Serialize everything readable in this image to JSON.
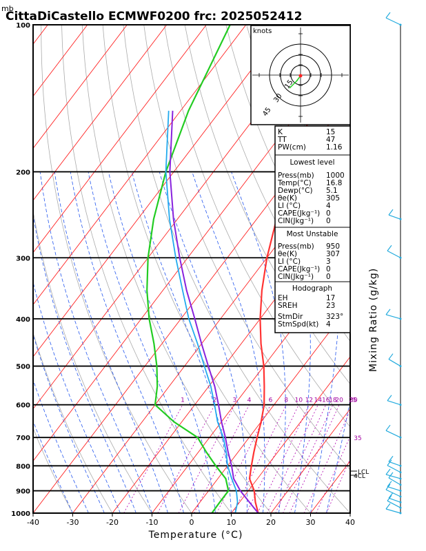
{
  "title": "CittaDiCastello ECMWF0200  frc: 2025052412",
  "unit_mb": "mb",
  "xlabel": "Temperature (°C)",
  "ylabel_right": "Mixing Ratio (g/kg)",
  "hodograph": {
    "unit": "knots",
    "ring_labels": [
      "15",
      "30",
      "45"
    ]
  },
  "indices": [
    {
      "label": "K",
      "value": "15"
    },
    {
      "label": "TT",
      "value": "47"
    },
    {
      "label": "PW(cm)",
      "value": "1.16"
    }
  ],
  "lowest_level": {
    "header": "Lowest level",
    "rows": [
      {
        "label": "Press(mb)",
        "value": "1000"
      },
      {
        "label": "Temp(°C)",
        "value": "16.8"
      },
      {
        "label": "Dewp(°C)",
        "value": "5.1"
      },
      {
        "label": "θe(K)",
        "value": "305"
      },
      {
        "label": "LI (°C)",
        "value": "4"
      },
      {
        "label": "CAPE(Jkg⁻¹)",
        "value": "0"
      },
      {
        "label": "CIN(Jkg⁻¹)",
        "value": "0"
      }
    ]
  },
  "most_unstable": {
    "header": "Most Unstable",
    "rows": [
      {
        "label": "Press(mb)",
        "value": "950"
      },
      {
        "label": "θe(K)",
        "value": "307"
      },
      {
        "label": "LI (°C)",
        "value": "3"
      },
      {
        "label": "CAPE(Jkg⁻¹)",
        "value": "0"
      },
      {
        "label": "CIN(Jkg⁻¹)",
        "value": "0"
      }
    ]
  },
  "hodograph_box": {
    "header": "Hodograph",
    "rows": [
      {
        "label": "EH",
        "value": "17"
      },
      {
        "label": "SREH",
        "value": "23"
      },
      {
        "label": "StmDir",
        "value": "323°"
      },
      {
        "label": "StmSpd(kt)",
        "value": "4"
      }
    ]
  },
  "level_labels": {
    "lcl": "LCL",
    "lcl2": "4CL"
  },
  "colors": {
    "temperature": "#ff3333",
    "dewpoint": "#22cc22",
    "parcel": "#8822dd",
    "wetbulb": "#22aaee",
    "isotherm": "#ff2222",
    "mixing_ratio": "#a000a0",
    "wind": "#22aadd",
    "moist_adiabat": "#2255ee"
  },
  "chart_data": {
    "type": "line",
    "title": "CittaDiCastello ECMWF0200  frc: 2025052412",
    "xlabel": "Temperature (°C)",
    "ylabel": "mb",
    "xlim": [
      -40,
      40
    ],
    "ylim": [
      1000,
      100
    ],
    "x_ticks": [
      -40,
      -30,
      -20,
      -10,
      0,
      10,
      20,
      30,
      40
    ],
    "pressure_ticks": [
      1000,
      900,
      800,
      700,
      600,
      500,
      400,
      300,
      200,
      100
    ],
    "mixing_ratio_labels": [
      "1",
      "2",
      "3",
      "4",
      "6",
      "8",
      "10",
      "12",
      "14",
      "16",
      "18",
      "20",
      "25",
      "30",
      "35"
    ],
    "series": [
      {
        "name": "Temperature",
        "points": [
          [
            1000,
            16.8
          ],
          [
            950,
            14
          ],
          [
            900,
            11.5
          ],
          [
            850,
            8
          ],
          [
            800,
            6
          ],
          [
            750,
            4
          ],
          [
            700,
            2
          ],
          [
            650,
            0
          ],
          [
            600,
            -2.5
          ],
          [
            550,
            -6
          ],
          [
            500,
            -10
          ],
          [
            450,
            -15
          ],
          [
            400,
            -20
          ],
          [
            350,
            -25
          ],
          [
            300,
            -30
          ],
          [
            250,
            -35
          ],
          [
            200,
            -40
          ],
          [
            150,
            -47
          ],
          [
            100,
            -55
          ]
        ]
      },
      {
        "name": "Dewpoint",
        "points": [
          [
            1000,
            5.1
          ],
          [
            950,
            5
          ],
          [
            900,
            5
          ],
          [
            850,
            2
          ],
          [
            800,
            -3
          ],
          [
            750,
            -8
          ],
          [
            700,
            -13
          ],
          [
            650,
            -22
          ],
          [
            600,
            -30
          ],
          [
            550,
            -33
          ],
          [
            500,
            -37
          ],
          [
            450,
            -42
          ],
          [
            400,
            -48
          ],
          [
            350,
            -54
          ],
          [
            300,
            -60
          ],
          [
            250,
            -66
          ],
          [
            200,
            -72
          ],
          [
            150,
            -78
          ],
          [
            100,
            -84
          ]
        ]
      },
      {
        "name": "Parcel",
        "points": [
          [
            1000,
            16.8
          ],
          [
            950,
            12.5
          ],
          [
            900,
            8
          ],
          [
            850,
            4
          ],
          [
            800,
            1
          ],
          [
            750,
            -2.5
          ],
          [
            700,
            -6
          ],
          [
            650,
            -10
          ],
          [
            600,
            -14
          ],
          [
            550,
            -18.5
          ],
          [
            500,
            -24
          ],
          [
            450,
            -30
          ],
          [
            400,
            -36.5
          ],
          [
            350,
            -44
          ],
          [
            300,
            -52
          ],
          [
            250,
            -61
          ],
          [
            200,
            -71
          ],
          [
            150,
            -82
          ]
        ]
      },
      {
        "name": "Wet bulb",
        "points": [
          [
            1000,
            11
          ],
          [
            950,
            9.5
          ],
          [
            900,
            7
          ],
          [
            850,
            3.5
          ],
          [
            800,
            0
          ],
          [
            750,
            -3
          ],
          [
            700,
            -6.5
          ],
          [
            650,
            -11
          ],
          [
            600,
            -15
          ],
          [
            550,
            -19.5
          ],
          [
            500,
            -25
          ],
          [
            450,
            -31
          ],
          [
            400,
            -38
          ],
          [
            350,
            -45
          ],
          [
            300,
            -53
          ],
          [
            250,
            -62
          ],
          [
            200,
            -72
          ],
          [
            150,
            -83
          ]
        ]
      }
    ],
    "wind_levels_mb": [
      1000,
      975,
      950,
      925,
      900,
      875,
      850,
      825,
      800,
      700,
      600,
      500,
      400,
      300,
      250,
      100
    ]
  }
}
